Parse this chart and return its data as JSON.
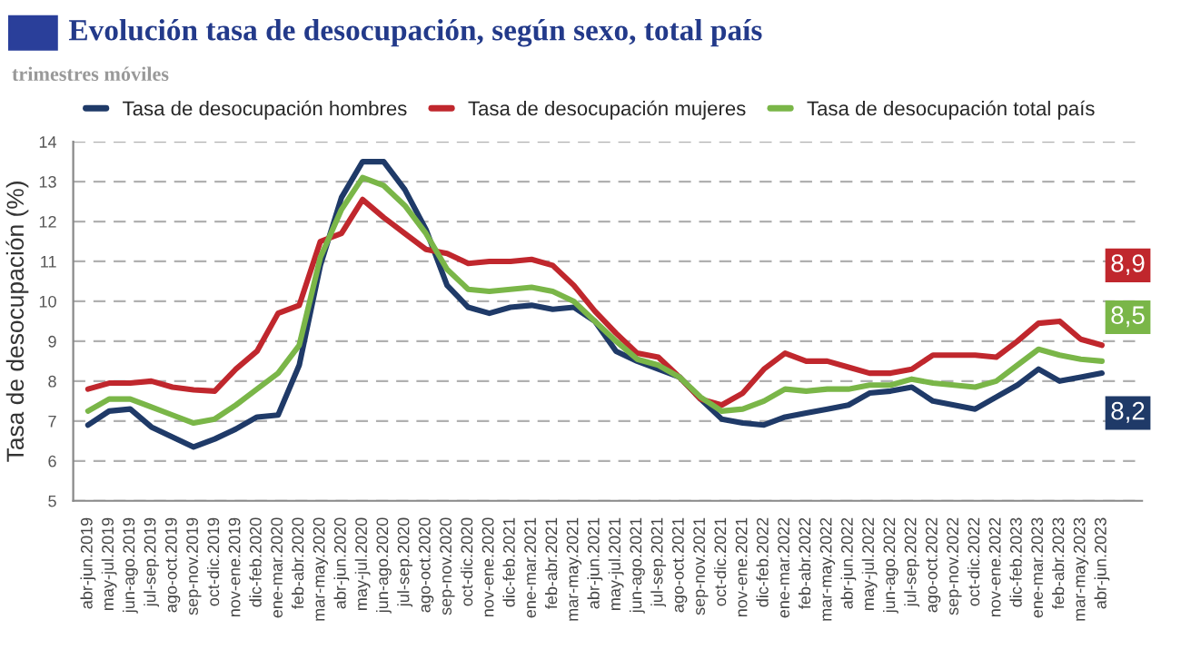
{
  "chart_data": {
    "type": "line",
    "title": "Evolución tasa de desocupación, según sexo, total país",
    "subtitle": "trimestres móviles",
    "ylabel": "Tasa de desocupación (%)",
    "categories": [
      "abr-jun.2019",
      "may-jul.2019",
      "jun-ago.2019",
      "jul-sep.2019",
      "ago-oct.2019",
      "sep-nov.2019",
      "oct-dic.2019",
      "nov-ene.2019",
      "dic-feb.2020",
      "ene-mar.2020",
      "feb-abr.2020",
      "mar-may.2020",
      "abr-jun.2020",
      "may-jul.2020",
      "jun-ago.2020",
      "jul-sep.2020",
      "ago-oct.2020",
      "sep-nov.2020",
      "oct-dic.2020",
      "nov-ene.2020",
      "dic-feb.2021",
      "ene-mar.2021",
      "feb-abr.2021",
      "mar-may.2021",
      "abr-jun.2021",
      "may-jul.2021",
      "jun-ago.2021",
      "jul-sep.2021",
      "ago-oct.2021",
      "sep-nov.2021",
      "oct-dic.2021",
      "nov-ene.2021",
      "dic-feb.2022",
      "ene-mar.2022",
      "feb-abr.2022",
      "mar-may.2022",
      "abr-jun.2022",
      "may-jul.2022",
      "jun-ago.2022",
      "jul-sep.2022",
      "ago-oct.2022",
      "sep-nov.2022",
      "oct-dic.2022",
      "nov-ene.2022",
      "dic-feb.2023",
      "ene-mar.2023",
      "feb-abr.2023",
      "mar-may.2023",
      "abr-jun.2023"
    ],
    "series": [
      {
        "name": "Tasa de desocupación hombres",
        "color": "#1f3a68",
        "values": [
          6.9,
          7.25,
          7.3,
          6.85,
          6.6,
          6.35,
          6.55,
          6.8,
          7.1,
          7.15,
          8.4,
          10.9,
          12.6,
          13.5,
          13.5,
          12.8,
          11.8,
          10.4,
          9.85,
          9.7,
          9.85,
          9.9,
          9.8,
          9.85,
          9.5,
          8.75,
          8.5,
          8.3,
          8.1,
          7.55,
          7.05,
          6.95,
          6.9,
          7.1,
          7.2,
          7.3,
          7.4,
          7.7,
          7.75,
          7.85,
          7.5,
          7.4,
          7.3,
          7.6,
          7.9,
          8.3,
          8.0,
          8.1,
          8.2
        ],
        "value_labels": [
          null,
          null,
          null,
          null,
          null,
          null,
          null,
          null,
          null,
          null,
          null,
          null,
          null,
          null,
          null,
          null,
          null,
          null,
          null,
          null,
          null,
          null,
          null,
          null,
          null,
          null,
          null,
          null,
          null,
          null,
          null,
          null,
          null,
          null,
          null,
          null,
          null,
          null,
          null,
          null,
          null,
          null,
          null,
          null,
          null,
          null,
          null,
          null,
          "8,2"
        ]
      },
      {
        "name": "Tasa de desocupación mujeres",
        "color": "#c0272d",
        "values": [
          7.8,
          7.95,
          7.95,
          8.0,
          7.85,
          7.78,
          7.75,
          8.3,
          8.75,
          9.7,
          9.9,
          11.5,
          11.7,
          12.55,
          12.1,
          11.7,
          11.3,
          11.2,
          10.95,
          11.0,
          11.0,
          11.05,
          10.9,
          10.4,
          9.75,
          9.2,
          8.7,
          8.6,
          8.1,
          7.55,
          7.4,
          7.7,
          8.3,
          8.7,
          8.5,
          8.5,
          8.35,
          8.2,
          8.2,
          8.3,
          8.65,
          8.65,
          8.65,
          8.6,
          9.0,
          9.45,
          9.5,
          9.05,
          8.9
        ],
        "value_labels": [
          null,
          null,
          null,
          null,
          null,
          null,
          null,
          null,
          null,
          null,
          null,
          null,
          null,
          null,
          null,
          null,
          null,
          null,
          null,
          null,
          null,
          null,
          null,
          null,
          null,
          null,
          null,
          null,
          null,
          null,
          null,
          null,
          null,
          null,
          null,
          null,
          null,
          null,
          null,
          null,
          null,
          null,
          null,
          null,
          null,
          null,
          null,
          null,
          "8,9"
        ]
      },
      {
        "name": "Tasa de desocupación total país",
        "color": "#7ab648",
        "values": [
          7.25,
          7.55,
          7.55,
          7.35,
          7.15,
          6.95,
          7.05,
          7.4,
          7.8,
          8.2,
          8.9,
          11.1,
          12.3,
          13.1,
          12.9,
          12.4,
          11.7,
          10.8,
          10.3,
          10.25,
          10.3,
          10.35,
          10.25,
          10.0,
          9.5,
          9.0,
          8.55,
          8.4,
          8.1,
          7.6,
          7.25,
          7.3,
          7.5,
          7.8,
          7.75,
          7.8,
          7.8,
          7.9,
          7.9,
          8.05,
          7.95,
          7.9,
          7.85,
          8.0,
          8.4,
          8.8,
          8.65,
          8.55,
          8.5
        ],
        "value_labels": [
          null,
          null,
          null,
          null,
          null,
          null,
          null,
          null,
          null,
          null,
          null,
          null,
          null,
          null,
          null,
          null,
          null,
          null,
          null,
          null,
          null,
          null,
          null,
          null,
          null,
          null,
          null,
          null,
          null,
          null,
          null,
          null,
          null,
          null,
          null,
          null,
          null,
          null,
          null,
          null,
          null,
          null,
          null,
          null,
          null,
          null,
          null,
          null,
          "8,5"
        ]
      }
    ],
    "ylim": [
      5,
      14
    ],
    "yticks": [
      5,
      6,
      7,
      8,
      9,
      10,
      11,
      12,
      13,
      14
    ],
    "grid": "y",
    "legend": "top",
    "marker": "none",
    "line_style": "solid"
  }
}
